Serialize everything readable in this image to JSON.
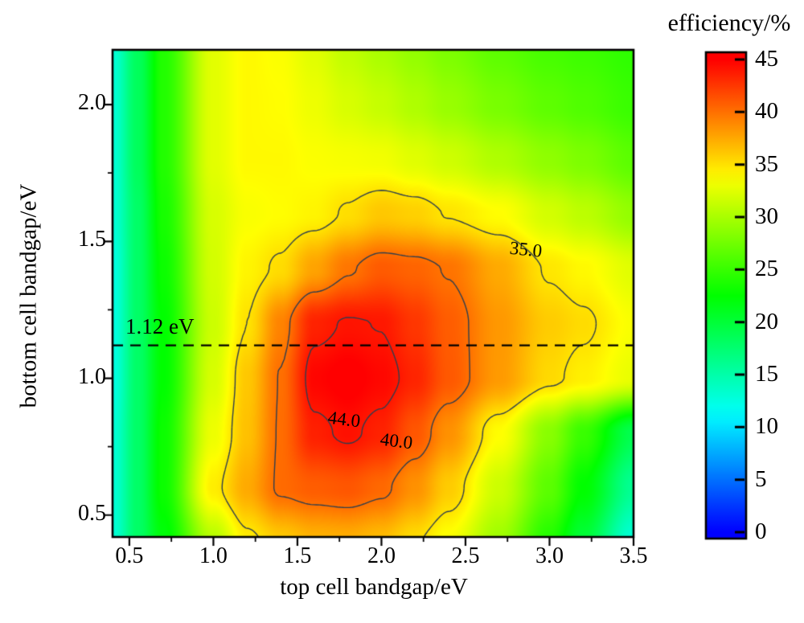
{
  "figure": {
    "colorbar_title": "efficiency/%",
    "x_axis_label": "top cell bandgap/eV",
    "y_axis_label": "bottom cell bandgap/eV",
    "reference_annotation": "1.12 eV"
  },
  "chart_data": {
    "type": "heatmap",
    "subtype": "filled-contour-map",
    "title": "",
    "xlabel": "top cell bandgap/eV",
    "ylabel": "bottom cell bandgap/eV",
    "x_range": [
      0.4,
      3.5
    ],
    "y_range": [
      0.42,
      2.2
    ],
    "x_ticks": [
      0.5,
      1.0,
      1.5,
      2.0,
      2.5,
      3.0,
      3.5
    ],
    "x_tick_labels": [
      "0.5",
      "1.0",
      "1.5",
      "2.0",
      "2.5",
      "3.0",
      "3.5"
    ],
    "x_minor_ticks": [
      0.75,
      1.25,
      1.75,
      2.25,
      2.75,
      3.25
    ],
    "y_ticks": [
      0.5,
      1.0,
      1.5,
      2.0
    ],
    "y_tick_labels": [
      "0.5",
      "1.0",
      "1.5",
      "2.0"
    ],
    "y_minor_ticks": [
      0.75,
      1.25,
      1.75
    ],
    "grid_lines": false,
    "colorbar": {
      "title": "efficiency/%",
      "min": 0,
      "max": 45,
      "ticks": [
        0,
        5,
        10,
        15,
        20,
        25,
        30,
        35,
        40,
        45
      ],
      "tick_labels": [
        "0",
        "5",
        "10",
        "15",
        "20",
        "25",
        "30",
        "35",
        "40",
        "45"
      ],
      "colormap": "rainbow blue-cyan-green-yellow-orange-red",
      "color_low": "#0000ff",
      "color_mid": "#00ff00",
      "color_high": "#ff0000"
    },
    "contour_levels": [
      35.0,
      40.0,
      44.0
    ],
    "contour_line_color": "#2f3e4e",
    "contour_labels": [
      {
        "text": "35.0",
        "x_ev": 2.86,
        "y_ev": 1.47,
        "rot_deg": 6
      },
      {
        "text": "44.0",
        "x_ev": 1.78,
        "y_ev": 0.85,
        "rot_deg": 7
      },
      {
        "text": "40.0",
        "x_ev": 2.09,
        "y_ev": 0.77,
        "rot_deg": 7
      }
    ],
    "reference_line": {
      "y": 1.12,
      "label": "1.12 eV",
      "style": "dashed",
      "color": "#000000"
    },
    "peak": {
      "x_ev": 1.8,
      "y_ev": 0.97,
      "efficiency": 45.3
    },
    "grid": {
      "x": [
        0.4,
        0.55,
        0.7,
        1.0,
        1.2,
        1.4,
        1.6,
        1.8,
        2.0,
        2.2,
        2.4,
        2.7,
        3.0,
        3.2,
        3.5
      ],
      "y": [
        0.4,
        0.6,
        0.8,
        1.0,
        1.2,
        1.4,
        1.6,
        1.8,
        2.0,
        2.2
      ],
      "values": [
        [
          13.0,
          18.0,
          22.0,
          30.5,
          34.5,
          36.0,
          37.0,
          37.2,
          36.6,
          35.2,
          33.5,
          29.5,
          24.0,
          20.0,
          13.0
        ],
        [
          13.0,
          18.0,
          23.0,
          34.5,
          37.5,
          40.3,
          40.9,
          41.2,
          40.4,
          38.6,
          36.0,
          31.5,
          26.5,
          22.5,
          16.0
        ],
        [
          13.0,
          18.0,
          23.0,
          33.0,
          36.5,
          40.2,
          43.6,
          44.3,
          43.5,
          41.2,
          38.6,
          33.8,
          28.5,
          25.0,
          19.0
        ],
        [
          12.5,
          18.0,
          22.5,
          32.0,
          36.2,
          40.1,
          44.8,
          45.3,
          44.7,
          43.4,
          41.1,
          38.2,
          35.4,
          34.4,
          32.8
        ],
        [
          12.5,
          18.0,
          22.5,
          31.5,
          35.0,
          39.2,
          43.5,
          44.15,
          43.95,
          42.6,
          40.9,
          38.3,
          36.0,
          35.3,
          33.5
        ],
        [
          12.5,
          18.0,
          23.0,
          31.8,
          34.2,
          35.3,
          37.8,
          39.8,
          41.0,
          40.6,
          39.9,
          37.5,
          34.8,
          34.0,
          32.4
        ],
        [
          13.0,
          18.0,
          23.5,
          32.0,
          33.5,
          33.8,
          34.2,
          35.2,
          36.2,
          35.8,
          34.9,
          33.8,
          31.8,
          30.8,
          29.0
        ],
        [
          13.0,
          18.5,
          24.0,
          32.5,
          34.0,
          34.0,
          33.6,
          33.4,
          33.2,
          32.4,
          31.6,
          30.2,
          28.8,
          28.0,
          26.5
        ],
        [
          13.0,
          18.5,
          24.0,
          32.5,
          34.0,
          33.8,
          33.0,
          32.0,
          31.2,
          30.2,
          29.2,
          27.8,
          26.6,
          26.0,
          25.0
        ],
        [
          13.0,
          18.5,
          24.0,
          32.5,
          34.0,
          33.6,
          32.4,
          31.0,
          30.0,
          29.0,
          28.0,
          26.6,
          25.6,
          25.2,
          24.5
        ]
      ]
    }
  }
}
